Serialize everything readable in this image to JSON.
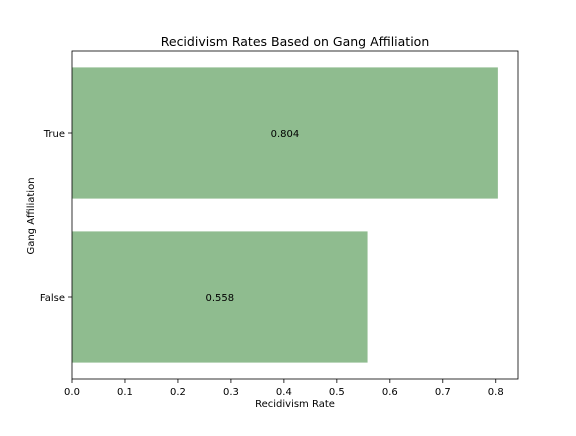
{
  "chart_data": {
    "type": "bar",
    "orientation": "horizontal",
    "title": "Recidivism Rates Based on Gang Affiliation",
    "xlabel": "Recidivism Rate",
    "ylabel": "Gang Affiliation",
    "categories": [
      "True",
      "False"
    ],
    "values": [
      0.804,
      0.558
    ],
    "data_labels": [
      "0.804",
      "0.558"
    ],
    "xlim": [
      0,
      0.842
    ],
    "xticks": [
      0.0,
      0.1,
      0.2,
      0.3,
      0.4,
      0.5,
      0.6,
      0.7,
      0.8
    ],
    "xtick_labels": [
      "0.0",
      "0.1",
      "0.2",
      "0.3",
      "0.4",
      "0.5",
      "0.6",
      "0.7",
      "0.8"
    ],
    "bar_color": "#8fbc8f",
    "grid": false,
    "legend": "none"
  }
}
